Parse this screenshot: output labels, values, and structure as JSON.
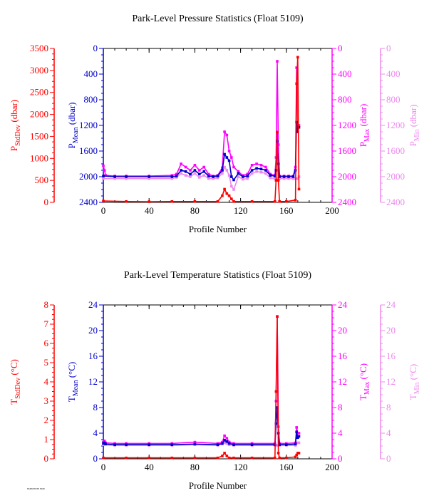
{
  "colors": {
    "stddev": "#ff0000",
    "mean": "#0000cc",
    "max": "#ff00ff",
    "min": "#ee88ee",
    "frame": "#000000"
  },
  "footer_text": "PARKSTATS 5109",
  "chart_data": [
    {
      "type": "line",
      "title": "Park-Level Pressure Statistics (Float 5109)",
      "xlabel": "Profile Number",
      "xlim": [
        0,
        200
      ],
      "xticks": [
        "0",
        "40",
        "80",
        "120",
        "160",
        "200"
      ],
      "axes": [
        {
          "key": "stddev",
          "label": "P",
          "sub": "StdDev",
          "unit": " (dbar)",
          "ylim": [
            0,
            3500
          ],
          "inverted": false,
          "ticks": [
            "0",
            "500",
            "1000",
            "1500",
            "2000",
            "2500",
            "3000",
            "3500"
          ]
        },
        {
          "key": "mean",
          "label": "P",
          "sub": "Mean",
          "unit": " (dbar)",
          "ylim": [
            2400,
            0
          ],
          "inverted": true,
          "ticks": [
            "2400",
            "2000",
            "1600",
            "1200",
            "800",
            "400",
            "0"
          ]
        },
        {
          "key": "max",
          "label": "P",
          "sub": "Max",
          "unit": " (dbar)",
          "ylim": [
            2400,
            0
          ],
          "inverted": true,
          "ticks": [
            "2400",
            "2000",
            "1600",
            "1200",
            "800",
            "400",
            "0"
          ]
        },
        {
          "key": "min",
          "label": "P",
          "sub": "Min",
          "unit": " (dbar)",
          "ylim": [
            2400,
            0
          ],
          "inverted": true,
          "ticks": [
            "2400",
            "2000",
            "1600",
            "1200",
            "800",
            "400",
            "0"
          ]
        }
      ],
      "series": [
        {
          "name": "StdDev",
          "axis": "stddev",
          "x": [
            0,
            20,
            40,
            60,
            80,
            100,
            104,
            106,
            108,
            110,
            112,
            114,
            130,
            150,
            151,
            152,
            153,
            154,
            160,
            168,
            169,
            170,
            171
          ],
          "y": [
            30,
            20,
            15,
            20,
            20,
            20,
            150,
            300,
            200,
            150,
            80,
            20,
            20,
            20,
            500,
            1600,
            500,
            20,
            20,
            50,
            2700,
            3300,
            300
          ]
        },
        {
          "name": "Mean",
          "axis": "mean",
          "x": [
            0,
            10,
            20,
            40,
            60,
            64,
            68,
            72,
            76,
            80,
            84,
            88,
            92,
            96,
            100,
            104,
            106,
            108,
            110,
            112,
            114,
            118,
            122,
            126,
            130,
            134,
            138,
            142,
            146,
            150,
            151,
            152,
            153,
            154,
            158,
            162,
            166,
            168,
            169,
            170,
            171
          ],
          "y": [
            1990,
            2000,
            2000,
            2000,
            2000,
            1990,
            1900,
            1920,
            1960,
            1900,
            1960,
            1920,
            1990,
            2000,
            1990,
            1900,
            1650,
            1700,
            1750,
            2000,
            2050,
            1950,
            2000,
            1990,
            1900,
            1870,
            1880,
            1900,
            1980,
            1990,
            1900,
            1450,
            1800,
            2000,
            2000,
            2000,
            2000,
            1900,
            1150,
            1300,
            1230
          ]
        },
        {
          "name": "Max",
          "axis": "max",
          "x": [
            0,
            1,
            2,
            10,
            20,
            40,
            60,
            64,
            68,
            72,
            76,
            80,
            84,
            88,
            92,
            96,
            100,
            104,
            106,
            108,
            110,
            112,
            114,
            118,
            122,
            126,
            130,
            134,
            138,
            142,
            146,
            150,
            151,
            152,
            153,
            154,
            158,
            162,
            166,
            168,
            169,
            170,
            171
          ],
          "y": [
            1830,
            1900,
            1980,
            1990,
            1990,
            1990,
            1980,
            1960,
            1800,
            1850,
            1900,
            1820,
            1900,
            1850,
            1960,
            1990,
            1980,
            1860,
            1300,
            1350,
            1600,
            1700,
            1850,
            1920,
            1980,
            1960,
            1820,
            1800,
            1820,
            1850,
            1960,
            1980,
            1700,
            200,
            1500,
            1990,
            1990,
            1990,
            1990,
            1850,
            300,
            1200,
            1200
          ]
        },
        {
          "name": "Min",
          "axis": "min",
          "x": [
            0,
            10,
            20,
            40,
            60,
            64,
            68,
            72,
            76,
            80,
            84,
            88,
            92,
            96,
            100,
            104,
            106,
            108,
            110,
            112,
            114,
            118,
            122,
            126,
            130,
            134,
            138,
            142,
            146,
            150,
            152,
            154,
            158,
            162,
            166,
            168,
            170,
            171
          ],
          "y": [
            2030,
            2030,
            2030,
            2030,
            2030,
            2010,
            1950,
            1980,
            2000,
            1950,
            2010,
            1980,
            2030,
            2030,
            2020,
            1950,
            1850,
            1900,
            1980,
            2150,
            2200,
            2000,
            2040,
            2030,
            1950,
            1920,
            1930,
            1950,
            2020,
            2030,
            2030,
            2030,
            2030,
            2030,
            2030,
            2030,
            2030,
            2000
          ]
        }
      ]
    },
    {
      "type": "line",
      "title": "Park-Level Temperature Statistics (Float 5109)",
      "xlabel": "Profile Number",
      "xlim": [
        0,
        200
      ],
      "xticks": [
        "0",
        "40",
        "80",
        "120",
        "160",
        "200"
      ],
      "axes": [
        {
          "key": "stddev",
          "label": "T",
          "sub": "StdDev",
          "unit": " (°C)",
          "ylim": [
            0,
            8
          ],
          "inverted": false,
          "ticks": [
            "0",
            "1",
            "2",
            "3",
            "4",
            "5",
            "6",
            "7",
            "8"
          ]
        },
        {
          "key": "mean",
          "label": "T",
          "sub": "Mean",
          "unit": " (°C)",
          "ylim": [
            0,
            24
          ],
          "inverted": false,
          "ticks": [
            "0",
            "4",
            "8",
            "12",
            "16",
            "20",
            "24"
          ]
        },
        {
          "key": "max",
          "label": "T",
          "sub": "Max",
          "unit": " (°C)",
          "ylim": [
            0,
            24
          ],
          "inverted": false,
          "ticks": [
            "0",
            "4",
            "8",
            "12",
            "16",
            "20",
            "24"
          ]
        },
        {
          "key": "min",
          "label": "T",
          "sub": "Min",
          "unit": " (°C)",
          "ylim": [
            0,
            24
          ],
          "inverted": false,
          "ticks": [
            "0",
            "4",
            "8",
            "12",
            "16",
            "20",
            "24"
          ]
        }
      ],
      "series": [
        {
          "name": "StdDev",
          "axis": "stddev",
          "x": [
            0,
            20,
            40,
            60,
            80,
            100,
            104,
            106,
            108,
            110,
            114,
            130,
            150,
            151,
            152,
            153,
            154,
            160,
            168,
            169,
            170,
            171
          ],
          "y": [
            0.05,
            0.05,
            0.05,
            0.05,
            0.05,
            0.05,
            0.15,
            0.3,
            0.15,
            0.05,
            0.05,
            0.05,
            0.05,
            3.5,
            7.4,
            0.3,
            0.05,
            0.05,
            0.1,
            0.2,
            0.3,
            0.3
          ]
        },
        {
          "name": "Mean",
          "axis": "mean",
          "x": [
            0,
            1,
            2,
            10,
            20,
            40,
            60,
            80,
            100,
            104,
            106,
            108,
            110,
            114,
            130,
            150,
            151,
            152,
            153,
            154,
            160,
            168,
            169,
            170,
            171
          ],
          "y": [
            2.4,
            2.5,
            2.3,
            2.2,
            2.2,
            2.2,
            2.2,
            2.3,
            2.2,
            2.4,
            2.9,
            2.7,
            2.4,
            2.2,
            2.2,
            2.2,
            5.5,
            8.0,
            4.0,
            2.2,
            2.2,
            2.3,
            4.2,
            3.3,
            3.5
          ]
        },
        {
          "name": "Max",
          "axis": "max",
          "x": [
            0,
            1,
            2,
            10,
            20,
            40,
            60,
            80,
            100,
            104,
            106,
            108,
            110,
            114,
            130,
            150,
            151,
            152,
            153,
            154,
            160,
            168,
            169,
            170,
            171
          ],
          "y": [
            2.6,
            2.8,
            2.5,
            2.4,
            2.4,
            2.4,
            2.4,
            2.6,
            2.4,
            2.6,
            3.6,
            3.2,
            2.6,
            2.4,
            2.4,
            2.4,
            9.0,
            22.2,
            5.0,
            2.4,
            2.4,
            2.5,
            4.9,
            4.0,
            4.0
          ]
        },
        {
          "name": "Min",
          "axis": "min",
          "x": [
            0,
            10,
            20,
            40,
            60,
            80,
            100,
            104,
            106,
            108,
            110,
            114,
            130,
            150,
            152,
            154,
            160,
            168,
            170,
            171
          ],
          "y": [
            2.2,
            2.1,
            2.1,
            2.1,
            2.1,
            2.2,
            2.1,
            2.3,
            2.5,
            2.4,
            2.2,
            2.1,
            2.1,
            2.1,
            2.1,
            2.1,
            2.1,
            2.1,
            2.5,
            2.5
          ]
        }
      ]
    }
  ]
}
